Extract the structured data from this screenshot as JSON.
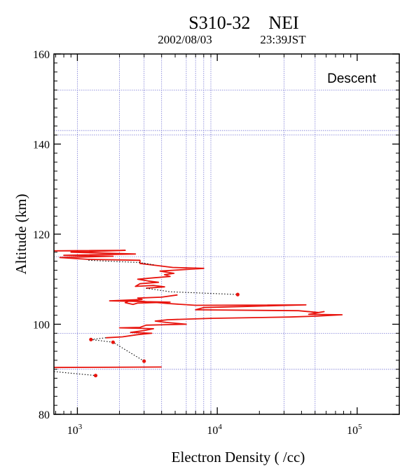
{
  "chart_data": {
    "type": "line",
    "title": "S310-32    NEI",
    "subtitle_date": "2002/08/03",
    "subtitle_time": "23:39JST",
    "xlabel": "Electron Density ( /cc)",
    "ylabel": "Altitude (km)",
    "annotation": "Descent",
    "x_scale": "log",
    "xlim": [
      680,
      200000
    ],
    "ylim": [
      80,
      160
    ],
    "y_ticks": [
      80,
      100,
      120,
      140,
      160
    ],
    "x_ticks": [
      {
        "value": 1000,
        "base": "10",
        "exp": "3"
      },
      {
        "value": 10000,
        "base": "10",
        "exp": "4"
      },
      {
        "value": 100000,
        "base": "10",
        "exp": "5"
      }
    ],
    "grid_x": [
      1000,
      2000,
      3000,
      4000,
      6000,
      7000,
      8000,
      9000,
      30000,
      50000
    ],
    "grid_y": [
      90,
      98,
      115,
      142,
      143,
      152
    ],
    "grid": true,
    "colors": {
      "profile": "#e8140e",
      "gap": "#000000",
      "grid": "#7a7ad6"
    },
    "series": [
      {
        "style": "solid",
        "segments": [
          [
            [
              680,
              116.3
            ],
            [
              2200,
              116.4
            ],
            [
              900,
              116.0
            ],
            [
              2600,
              115.6
            ],
            [
              800,
              115.3
            ],
            [
              1800,
              115.1
            ],
            [
              750,
              114.8
            ],
            [
              1200,
              114.4
            ],
            [
              2800,
              114.2
            ],
            [
              2800,
              113.5
            ],
            [
              3800,
              113.0
            ],
            [
              4800,
              112.6
            ],
            [
              8000,
              112.4
            ],
            [
              5000,
              112.0
            ],
            [
              3900,
              111.8
            ],
            [
              4900,
              111.3
            ],
            [
              4200,
              111.0
            ],
            [
              4600,
              110.6
            ],
            [
              3500,
              110.3
            ],
            [
              2700,
              110.0
            ],
            [
              3200,
              109.6
            ],
            [
              3800,
              109.3
            ],
            [
              2800,
              109.0
            ],
            [
              2600,
              108.4
            ],
            [
              3500,
              108.6
            ],
            [
              4200,
              108.3
            ],
            [
              3100,
              108.0
            ]
          ],
          [
            [
              5200,
              106.5
            ],
            [
              4000,
              106.0
            ],
            [
              2700,
              105.8
            ],
            [
              2900,
              105.5
            ],
            [
              1700,
              105.2
            ],
            [
              4600,
              104.9
            ],
            [
              2700,
              104.7
            ],
            [
              2500,
              104.4
            ],
            [
              2200,
              104.8
            ],
            [
              2400,
              105.3
            ],
            [
              4400,
              104.6
            ],
            [
              7000,
              104.2
            ],
            [
              43000,
              104.3
            ],
            [
              8000,
              103.7
            ],
            [
              7000,
              103.2
            ],
            [
              38000,
              103.0
            ],
            [
              53000,
              102.6
            ],
            [
              58000,
              102.8
            ],
            [
              45000,
              102.2
            ],
            [
              78000,
              102.1
            ],
            [
              52000,
              101.8
            ],
            [
              33000,
              101.6
            ],
            [
              9000,
              101.3
            ],
            [
              4400,
              101.0
            ],
            [
              3600,
              100.7
            ],
            [
              4300,
              100.4
            ],
            [
              6000,
              100.0
            ],
            [
              3100,
              99.8
            ],
            [
              2800,
              99.3
            ],
            [
              2000,
              99.2
            ],
            [
              3500,
              99.0
            ],
            [
              3000,
              98.6
            ],
            [
              2400,
              98.2
            ],
            [
              3400,
              98.0
            ],
            [
              2700,
              97.7
            ],
            [
              2100,
              97.2
            ],
            [
              1600,
              97.0
            ]
          ],
          [
            [
              680,
              90.4
            ],
            [
              4000,
              90.5
            ]
          ]
        ]
      },
      {
        "style": "dotted",
        "segments": [
          [
            [
              1200,
              114.2
            ],
            [
              2800,
              113.7
            ],
            [
              3500,
              113.2
            ]
          ],
          [
            [
              3100,
              108.0
            ],
            [
              4600,
              107.2
            ],
            [
              14000,
              106.6
            ]
          ],
          [
            [
              1600,
              97.0
            ],
            [
              1250,
              96.6
            ],
            [
              1800,
              96.0
            ],
            [
              3000,
              91.8
            ]
          ],
          [
            [
              680,
              89.5
            ],
            [
              1350,
              88.6
            ]
          ]
        ]
      }
    ],
    "markers": [
      [
        14000,
        106.6
      ],
      [
        1250,
        96.6
      ],
      [
        1800,
        96.0
      ],
      [
        3000,
        91.8
      ],
      [
        1350,
        88.6
      ]
    ]
  }
}
